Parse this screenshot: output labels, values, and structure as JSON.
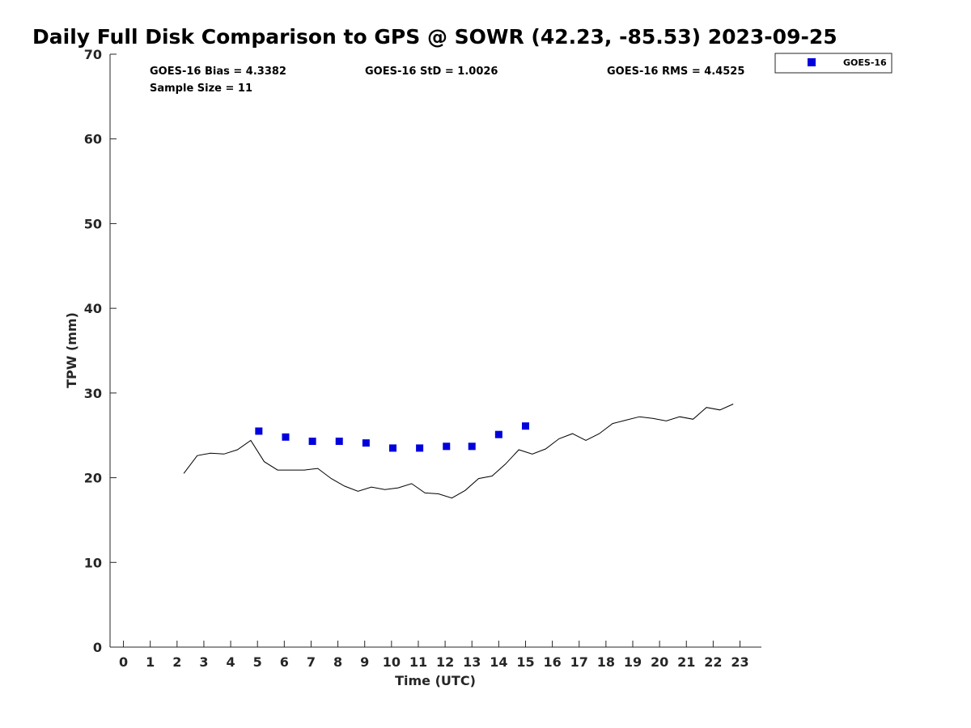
{
  "chart_data": {
    "type": "scatter",
    "title": "Daily Full Disk Comparison to GPS @ SOWR (42.23, -85.53) 2023-09-25",
    "xlabel": "Time (UTC)",
    "ylabel": "TPW (mm)",
    "xlim": [
      -0.5,
      23.8
    ],
    "ylim": [
      0,
      70
    ],
    "xticks": [
      0,
      1,
      2,
      3,
      4,
      5,
      6,
      7,
      8,
      9,
      10,
      11,
      12,
      13,
      14,
      15,
      16,
      17,
      18,
      19,
      20,
      21,
      22,
      23
    ],
    "yticks": [
      0,
      10,
      20,
      30,
      40,
      50,
      60,
      70
    ],
    "grid": false,
    "legend_position": "top-right",
    "series": [
      {
        "name": "GOES-16",
        "kind": "marker",
        "color": "#0000dd",
        "x": [
          5.05,
          6.05,
          7.05,
          8.05,
          9.05,
          10.05,
          11.05,
          12.05,
          13.0,
          14.0,
          15.0
        ],
        "y": [
          25.5,
          24.8,
          24.3,
          24.3,
          24.1,
          23.5,
          23.5,
          23.7,
          23.7,
          25.1,
          26.1
        ]
      },
      {
        "kind": "line",
        "color": "#000000",
        "x": [
          2.25,
          2.75,
          3.25,
          3.75,
          4.25,
          4.75,
          5.25,
          5.75,
          6.25,
          6.75,
          7.25,
          7.75,
          8.25,
          8.75,
          9.25,
          9.75,
          10.25,
          10.75,
          11.25,
          11.75,
          12.25,
          12.75,
          13.25,
          13.75,
          14.25,
          14.75,
          15.25,
          15.75,
          16.25,
          16.75,
          17.25,
          17.75,
          18.25,
          18.75,
          19.25,
          19.75,
          20.25,
          20.75,
          21.25,
          21.75,
          22.25,
          22.75
        ],
        "y": [
          20.5,
          22.6,
          22.9,
          22.8,
          23.3,
          24.4,
          21.9,
          20.9,
          20.9,
          20.9,
          21.1,
          19.9,
          19.0,
          18.4,
          18.9,
          18.6,
          18.8,
          19.3,
          18.2,
          18.1,
          17.6,
          18.5,
          19.9,
          20.2,
          21.6,
          23.3,
          22.8,
          23.4,
          24.6,
          25.2,
          24.4,
          25.2,
          26.4,
          26.8,
          27.2,
          27.0,
          26.7,
          27.2,
          26.9,
          28.3,
          28.0,
          28.7
        ]
      }
    ],
    "annotations": [
      "GOES-16 Bias = 4.3382",
      "GOES-16 StD = 1.0026",
      "GOES-16 RMS = 4.4525",
      "Sample Size = 11"
    ]
  },
  "colors": {
    "axis": "#262626",
    "line": "#000000",
    "marker": "#0000dd",
    "background": "#ffffff"
  }
}
